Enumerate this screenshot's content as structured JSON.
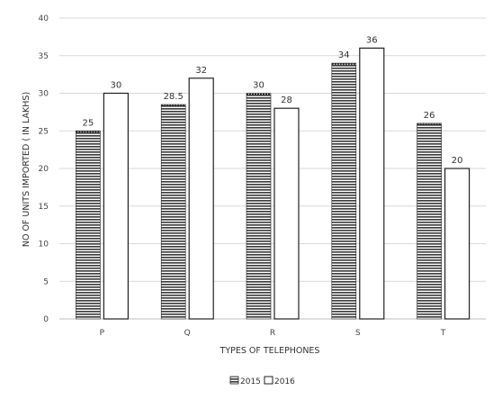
{
  "chart_data": {
    "type": "bar",
    "categories": [
      "P",
      "Q",
      "R",
      "S",
      "T"
    ],
    "series": [
      {
        "name": "2015",
        "values": [
          25,
          28.5,
          30,
          34,
          26
        ],
        "value_labels": [
          "25",
          "28.5",
          "30",
          "34",
          "26"
        ]
      },
      {
        "name": "2016",
        "values": [
          30,
          32,
          28,
          36,
          20
        ],
        "value_labels": [
          "30",
          "32",
          "28",
          "36",
          "20"
        ]
      }
    ],
    "title": "",
    "xlabel": "TYPES OF TELEPHONES",
    "ylabel": "NO OF UNITS IMPORTED ( IN LAKHS)",
    "ylim": [
      0,
      40
    ],
    "yticks": [
      0,
      5,
      10,
      15,
      20,
      25,
      30,
      35,
      40
    ],
    "grid": true,
    "legend_position": "bottom",
    "colors": {
      "series_2015_fill": "#3a3a3a",
      "series_2016_fill": "#ffffff",
      "bar_stroke": "#222222",
      "grid": "#d9d9d9"
    }
  }
}
